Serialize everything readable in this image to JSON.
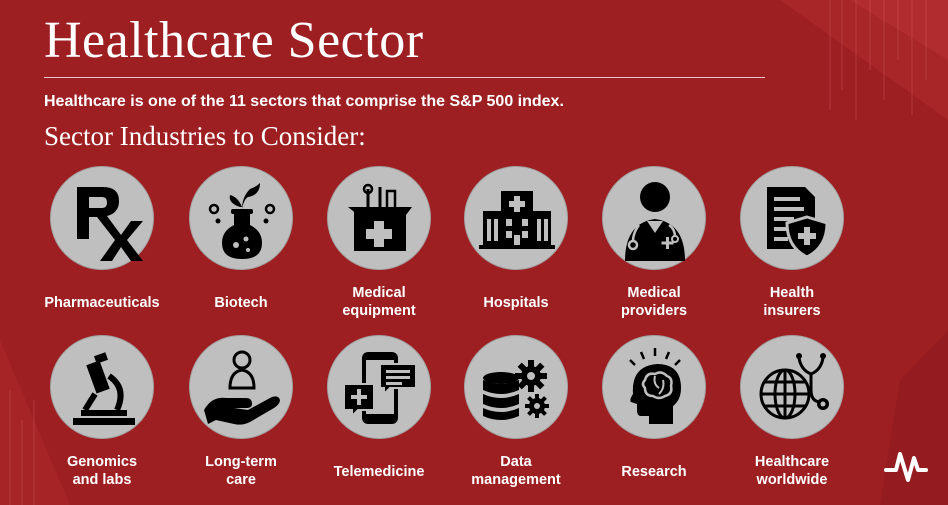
{
  "title": "Healthcare Sector",
  "subtitle": "Healthcare is one of the 11 sectors that comprise the S&P 500 index.",
  "section_heading": "Sector Industries to Consider:",
  "colors": {
    "background": "#9e1f22",
    "circle": "#bfbfbf",
    "icon": "#000000",
    "text": "#ffffff"
  },
  "industries": [
    {
      "label_lines": [
        "Pharmaceuticals"
      ],
      "icon": "rx-icon"
    },
    {
      "label_lines": [
        "Biotech"
      ],
      "icon": "flask-plant-icon"
    },
    {
      "label_lines": [
        "Medical",
        "equipment"
      ],
      "icon": "medical-kit-icon"
    },
    {
      "label_lines": [
        "Hospitals"
      ],
      "icon": "hospital-building-icon"
    },
    {
      "label_lines": [
        "Medical",
        "providers"
      ],
      "icon": "doctor-icon"
    },
    {
      "label_lines": [
        "Health",
        "insurers"
      ],
      "icon": "insurance-document-shield-icon"
    },
    {
      "label_lines": [
        "Genomics",
        "and labs"
      ],
      "icon": "microscope-icon"
    },
    {
      "label_lines": [
        "Long-term",
        "care"
      ],
      "icon": "caring-hand-icon"
    },
    {
      "label_lines": [
        "Telemedicine"
      ],
      "icon": "phone-chat-icon"
    },
    {
      "label_lines": [
        "Data",
        "management"
      ],
      "icon": "database-gear-icon"
    },
    {
      "label_lines": [
        "Research"
      ],
      "icon": "head-brain-icon"
    },
    {
      "label_lines": [
        "Healthcare",
        "worldwide"
      ],
      "icon": "globe-stethoscope-icon"
    }
  ]
}
